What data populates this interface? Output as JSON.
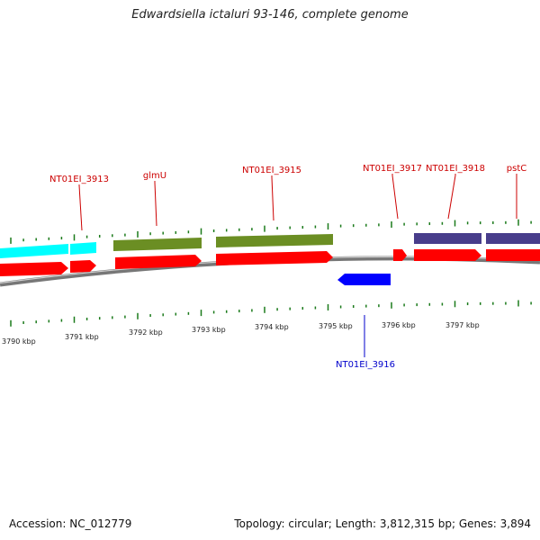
{
  "title": "Edwardsiella ictaluri 93-146, complete genome",
  "colors": {
    "cds": "#ff0000",
    "cds_reverse": "#0000ff",
    "tick": "#1a7a1a",
    "backbone": "#888888",
    "label_forward": "#cc0000",
    "label_reverse": "#0000cc",
    "gene_cyan": "#00ffff",
    "gene_olive": "#6b8e23",
    "gene_navy": "#483d8b"
  },
  "scale_labels": [
    "3790 kbp",
    "3791 kbp",
    "3792 kbp",
    "3793 kbp",
    "3794 kbp",
    "3795 kbp",
    "3796 kbp",
    "3797 kbp"
  ],
  "feature_labels": {
    "forward": [
      "NT01EI_3913",
      "glmU",
      "NT01EI_3915",
      "NT01EI_3917",
      "NT01EI_3918",
      "pstC"
    ],
    "reverse": [
      "NT01EI_3916"
    ]
  },
  "footer": {
    "accession": "Accession: NC_012779",
    "stats": "Topology: circular; Length: 3,812,315 bp; Genes: 3,894"
  }
}
